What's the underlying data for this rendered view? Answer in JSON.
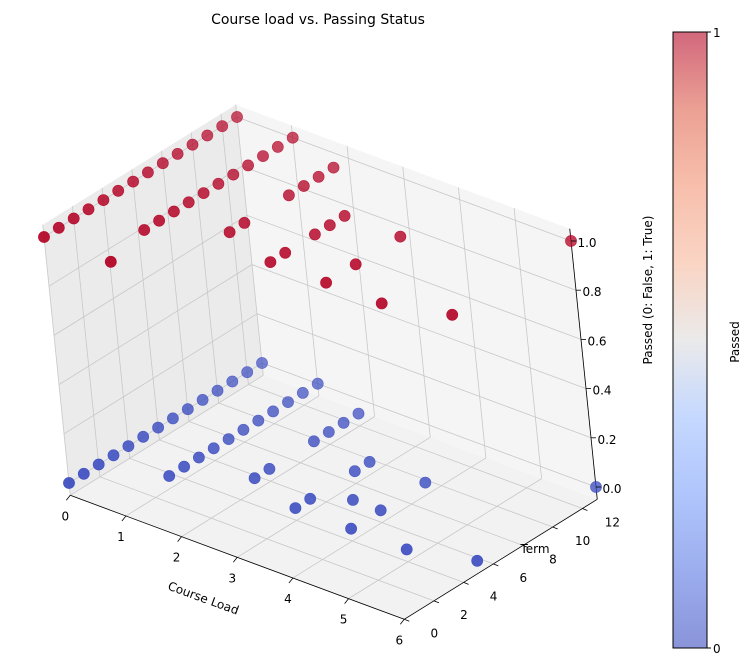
{
  "chart_data": {
    "type": "scatter",
    "projection": "3d",
    "title": "Course load vs. Passing Status",
    "xlabel": "Course Load",
    "ylabel": "Term",
    "zlabel": "Passed (0: False, 1: True)",
    "xlim": [
      0,
      6
    ],
    "ylim": [
      0,
      13
    ],
    "zlim": [
      0,
      1
    ],
    "xticks": [
      "0",
      "1",
      "2",
      "3",
      "4",
      "5",
      "6"
    ],
    "yticks": [
      "0",
      "2",
      "4",
      "6",
      "8",
      "10",
      "12"
    ],
    "zticks": [
      "0.0",
      "0.2",
      "0.4",
      "0.6",
      "0.8",
      "1.0"
    ],
    "grid": true,
    "colormap": "coolwarm",
    "colorbar": {
      "label": "Passed",
      "ticks": [
        "0",
        "1"
      ],
      "min": 0,
      "max": 1
    },
    "colors": {
      "passed": "#b40426",
      "failed": "#3b4cc0"
    },
    "points": [
      {
        "x": 0,
        "y": 0,
        "z": 0
      },
      {
        "x": 0,
        "y": 1,
        "z": 0
      },
      {
        "x": 0,
        "y": 2,
        "z": 0
      },
      {
        "x": 0,
        "y": 3,
        "z": 0
      },
      {
        "x": 0,
        "y": 4,
        "z": 0
      },
      {
        "x": 0,
        "y": 5,
        "z": 0
      },
      {
        "x": 0,
        "y": 6,
        "z": 0
      },
      {
        "x": 0,
        "y": 7,
        "z": 0
      },
      {
        "x": 0,
        "y": 8,
        "z": 0
      },
      {
        "x": 0,
        "y": 9,
        "z": 0
      },
      {
        "x": 0,
        "y": 10,
        "z": 0
      },
      {
        "x": 0,
        "y": 11,
        "z": 0
      },
      {
        "x": 0,
        "y": 12,
        "z": 0
      },
      {
        "x": 0,
        "y": 13,
        "z": 0
      },
      {
        "x": 0,
        "y": 0,
        "z": 1
      },
      {
        "x": 0,
        "y": 1,
        "z": 1
      },
      {
        "x": 0,
        "y": 2,
        "z": 1
      },
      {
        "x": 0,
        "y": 3,
        "z": 1
      },
      {
        "x": 0,
        "y": 4,
        "z": 1
      },
      {
        "x": 0,
        "y": 5,
        "z": 1
      },
      {
        "x": 0,
        "y": 6,
        "z": 1
      },
      {
        "x": 0,
        "y": 7,
        "z": 1
      },
      {
        "x": 0,
        "y": 8,
        "z": 1
      },
      {
        "x": 0,
        "y": 9,
        "z": 1
      },
      {
        "x": 0,
        "y": 10,
        "z": 1
      },
      {
        "x": 0,
        "y": 11,
        "z": 1
      },
      {
        "x": 0,
        "y": 12,
        "z": 1
      },
      {
        "x": 0,
        "y": 13,
        "z": 1
      },
      {
        "x": 1,
        "y": 3,
        "z": 0
      },
      {
        "x": 1,
        "y": 4,
        "z": 0
      },
      {
        "x": 1,
        "y": 5,
        "z": 0
      },
      {
        "x": 1,
        "y": 6,
        "z": 0
      },
      {
        "x": 1,
        "y": 7,
        "z": 0
      },
      {
        "x": 1,
        "y": 8,
        "z": 0
      },
      {
        "x": 1,
        "y": 9,
        "z": 0
      },
      {
        "x": 1,
        "y": 10,
        "z": 0
      },
      {
        "x": 1,
        "y": 11,
        "z": 0
      },
      {
        "x": 1,
        "y": 12,
        "z": 0
      },
      {
        "x": 1,
        "y": 13,
        "z": 0
      },
      {
        "x": 1,
        "y": 3,
        "z": 1
      },
      {
        "x": 1,
        "y": 4,
        "z": 1
      },
      {
        "x": 1,
        "y": 5,
        "z": 1
      },
      {
        "x": 1,
        "y": 6,
        "z": 1
      },
      {
        "x": 1,
        "y": 7,
        "z": 1
      },
      {
        "x": 1,
        "y": 8,
        "z": 1
      },
      {
        "x": 1,
        "y": 9,
        "z": 1
      },
      {
        "x": 1,
        "y": 10,
        "z": 1
      },
      {
        "x": 1,
        "y": 11,
        "z": 1
      },
      {
        "x": 1,
        "y": 12,
        "z": 1
      },
      {
        "x": 1,
        "y": 13,
        "z": 1
      },
      {
        "x": 1.2,
        "y": 0,
        "z": 1
      },
      {
        "x": 2,
        "y": 5,
        "z": 0
      },
      {
        "x": 2,
        "y": 6,
        "z": 0
      },
      {
        "x": 2,
        "y": 9,
        "z": 0
      },
      {
        "x": 2,
        "y": 10,
        "z": 0
      },
      {
        "x": 2,
        "y": 11,
        "z": 0
      },
      {
        "x": 2,
        "y": 12,
        "z": 0
      },
      {
        "x": 2,
        "y": 5,
        "z": 1
      },
      {
        "x": 2,
        "y": 6,
        "z": 1
      },
      {
        "x": 2,
        "y": 9,
        "z": 1
      },
      {
        "x": 2,
        "y": 10,
        "z": 1
      },
      {
        "x": 2,
        "y": 11,
        "z": 1
      },
      {
        "x": 2,
        "y": 12,
        "z": 1
      },
      {
        "x": 3,
        "y": 4,
        "z": 0
      },
      {
        "x": 3,
        "y": 5,
        "z": 0
      },
      {
        "x": 3,
        "y": 8,
        "z": 0
      },
      {
        "x": 3,
        "y": 9,
        "z": 0
      },
      {
        "x": 3,
        "y": 4,
        "z": 1
      },
      {
        "x": 3,
        "y": 5,
        "z": 1
      },
      {
        "x": 3,
        "y": 8,
        "z": 1
      },
      {
        "x": 3,
        "y": 9,
        "z": 1
      },
      {
        "x": 3,
        "y": 7,
        "z": 1
      },
      {
        "x": 3.5,
        "y": 6,
        "z": 0
      },
      {
        "x": 4,
        "y": 4,
        "z": 0
      },
      {
        "x": 4,
        "y": 6,
        "z": 0
      },
      {
        "x": 4,
        "y": 9,
        "z": 0
      },
      {
        "x": 4,
        "y": 4,
        "z": 1
      },
      {
        "x": 4,
        "y": 6,
        "z": 1
      },
      {
        "x": 4,
        "y": 9,
        "z": 1
      },
      {
        "x": 5,
        "y": 4,
        "z": 0
      },
      {
        "x": 5,
        "y": 4,
        "z": 1
      },
      {
        "x": 6,
        "y": 5,
        "z": 0
      },
      {
        "x": 6,
        "y": 5,
        "z": 1
      },
      {
        "x": 6,
        "y": 13,
        "z": 0
      },
      {
        "x": 6,
        "y": 13,
        "z": 1
      }
    ]
  }
}
